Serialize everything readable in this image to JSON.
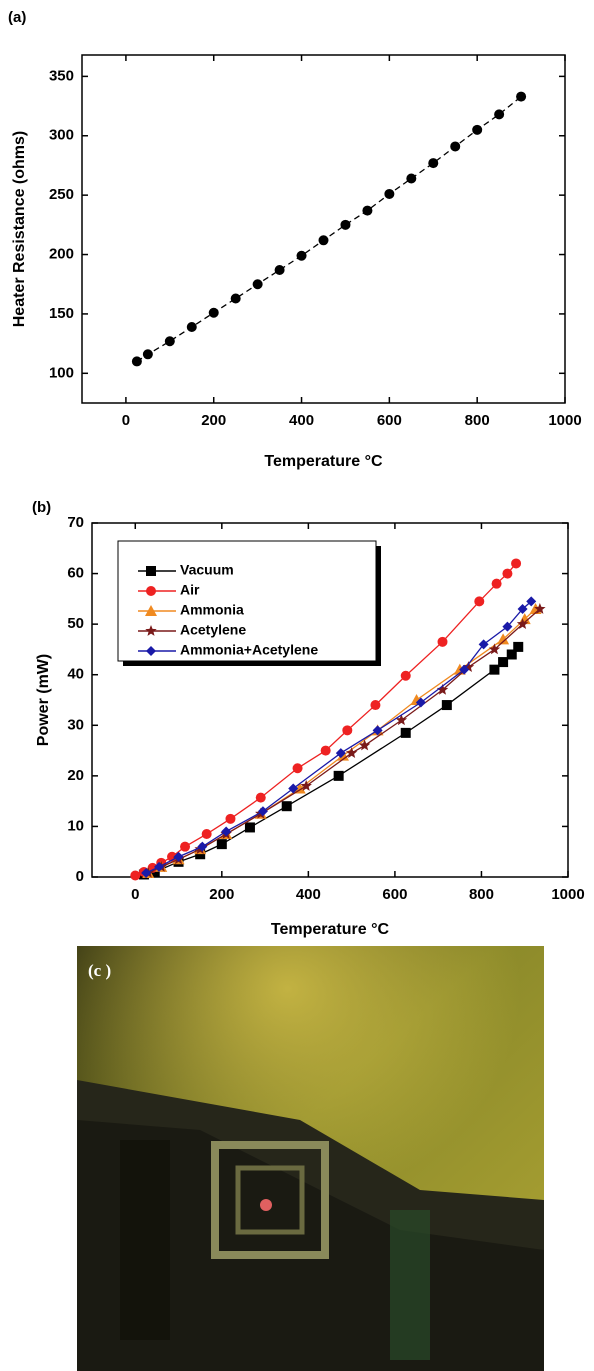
{
  "chart_data": [
    {
      "type": "line",
      "panel_label": "(a)",
      "x_label": "Temperature °C",
      "y_label": "Heater Resistance (ohms)",
      "xlim": [
        -100,
        1000
      ],
      "xticks": [
        0,
        200,
        400,
        600,
        800,
        1000
      ],
      "ylim": [
        75,
        368
      ],
      "yticks": [
        100,
        150,
        200,
        250,
        300,
        350
      ],
      "line_style": "dashed",
      "series": [
        {
          "color": "#000000",
          "marker": "circle",
          "x": [
            25,
            50,
            100,
            150,
            200,
            250,
            300,
            350,
            400,
            450,
            500,
            550,
            600,
            650,
            700,
            750,
            800,
            850,
            900
          ],
          "values": [
            110,
            116,
            127,
            139,
            151,
            163,
            175,
            187,
            199,
            212,
            225,
            237,
            251,
            264,
            277,
            291,
            305,
            318,
            333
          ]
        }
      ]
    },
    {
      "type": "line",
      "panel_label": "(b)",
      "x_label": "Temperature °C",
      "y_label": "Power (mW)",
      "xlim": [
        -100,
        1000
      ],
      "xticks": [
        0,
        200,
        400,
        600,
        800,
        1000
      ],
      "ylim": [
        0,
        70
      ],
      "yticks": [
        0,
        10,
        20,
        30,
        40,
        50,
        60,
        70
      ],
      "line_style": "solid",
      "legend": "upper left",
      "series": [
        {
          "name": "Vacuum",
          "color": "#000000",
          "marker": "square",
          "x": [
            20,
            45,
            100,
            150,
            200,
            265,
            350,
            470,
            625,
            720,
            830,
            850,
            870,
            885
          ],
          "values": [
            0.5,
            1,
            3,
            4.5,
            6.5,
            9.8,
            14,
            20,
            28.5,
            34,
            41,
            42.5,
            44,
            45.5
          ]
        },
        {
          "name": "Air",
          "color": "#ee2222",
          "marker": "circle",
          "x": [
            0,
            20,
            40,
            60,
            85,
            115,
            165,
            220,
            290,
            375,
            440,
            490,
            555,
            625,
            710,
            795,
            835,
            860,
            880
          ],
          "values": [
            0.3,
            1,
            1.8,
            2.8,
            4,
            6,
            8.5,
            11.5,
            15.7,
            21.5,
            25,
            29,
            34,
            39.8,
            46.5,
            54.5,
            58,
            60,
            62
          ]
        },
        {
          "name": "Ammonia",
          "color": "#f08a20",
          "marker": "triangle",
          "x": [
            30,
            60,
            100,
            150,
            210,
            290,
            380,
            480,
            560,
            650,
            750,
            850,
            900,
            925
          ],
          "values": [
            0.8,
            2,
            3.5,
            5.5,
            8.5,
            12.5,
            17.5,
            24,
            29,
            35,
            41,
            47,
            51,
            53
          ]
        },
        {
          "name": "Acetylene",
          "color": "#7a1a1a",
          "marker": "star",
          "x": [
            30,
            60,
            100,
            150,
            210,
            290,
            395,
            500,
            530,
            615,
            710,
            770,
            830,
            895,
            935
          ],
          "values": [
            0.8,
            2,
            3.5,
            5.5,
            8.5,
            12.5,
            18,
            24.5,
            26,
            31,
            37,
            41.5,
            45,
            50,
            53
          ]
        },
        {
          "name": "Ammonia+Acetylene",
          "color": "#1a1aa8",
          "marker": "diamond",
          "x": [
            25,
            55,
            100,
            155,
            210,
            295,
            365,
            475,
            560,
            660,
            760,
            805,
            860,
            895,
            915
          ],
          "values": [
            0.8,
            2,
            4,
            6,
            9,
            13,
            17.5,
            24.5,
            29,
            34.5,
            41,
            46,
            49.5,
            53,
            54.5
          ]
        }
      ]
    }
  ],
  "photo": {
    "label": "(c )"
  }
}
